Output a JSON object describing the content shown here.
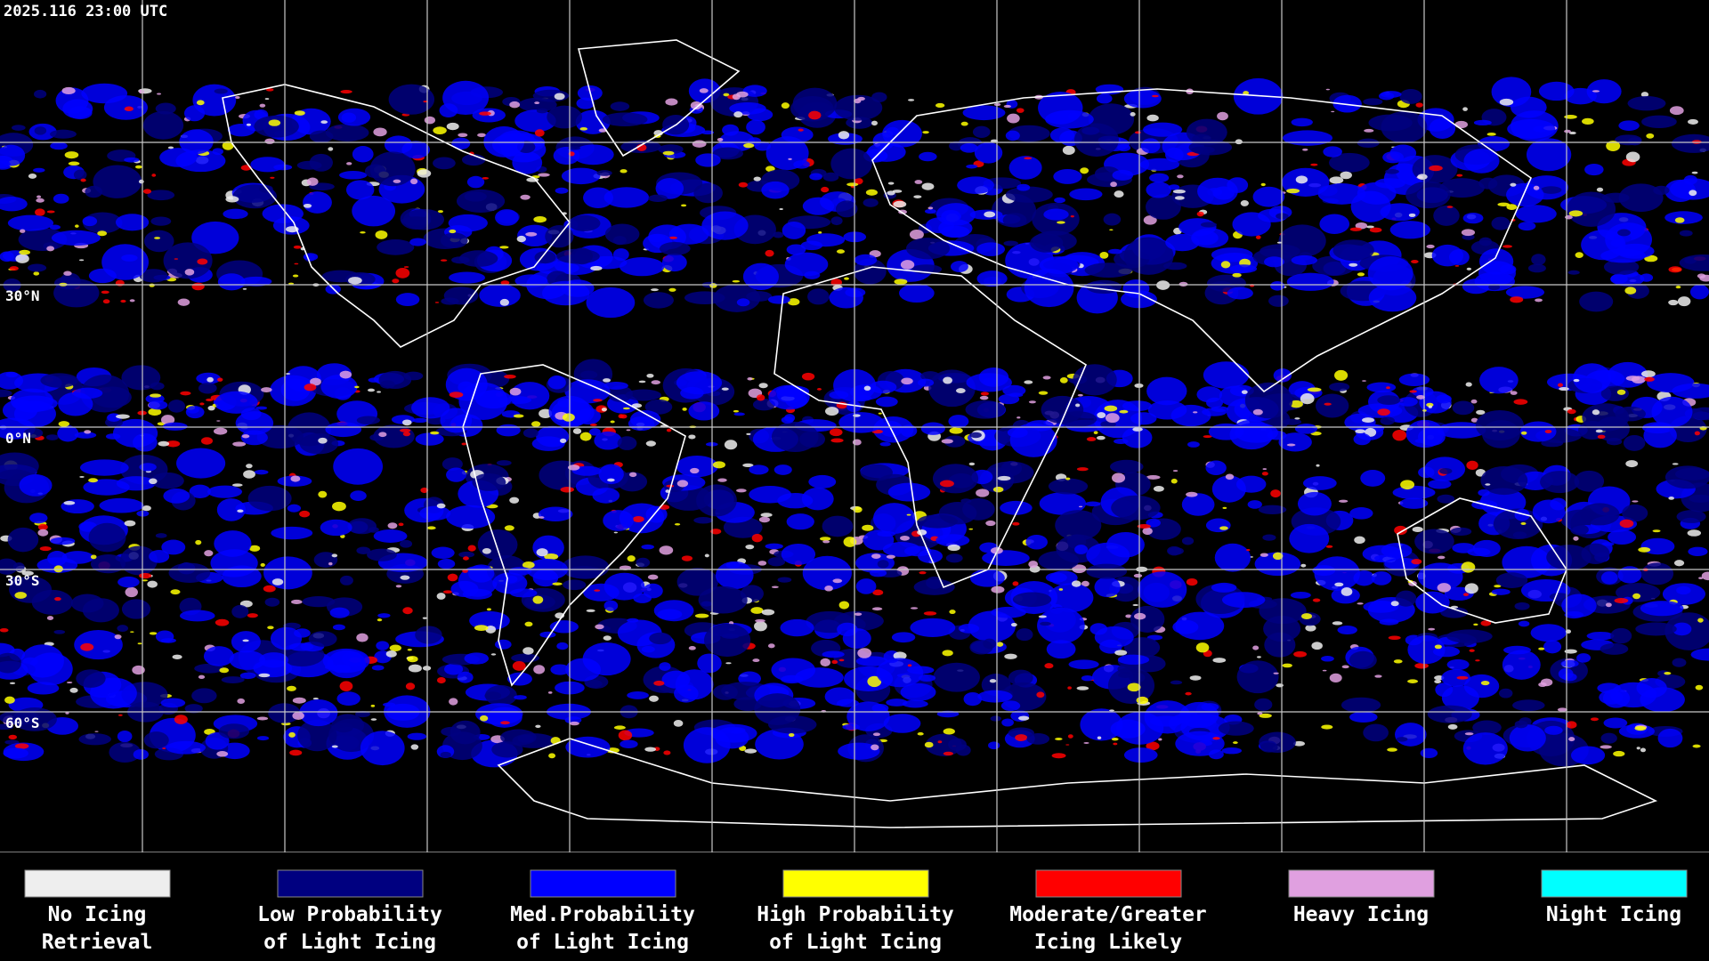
{
  "header": {
    "timestamp": "2025.116 23:00 UTC"
  },
  "latitude_labels": [
    "30°N",
    "0°N",
    "30°S",
    "60°S"
  ],
  "legend": [
    {
      "lines": [
        "No Icing",
        "Retrieval"
      ],
      "color": "#eeeeee"
    },
    {
      "lines": [
        "Low Probability",
        "of Light Icing"
      ],
      "color": "#000080"
    },
    {
      "lines": [
        "Med.Probability",
        "of Light Icing"
      ],
      "color": "#0000ff"
    },
    {
      "lines": [
        "High Probability",
        "of Light Icing"
      ],
      "color": "#ffff00"
    },
    {
      "lines": [
        "Moderate/Greater",
        "Icing Likely"
      ],
      "color": "#ff0000"
    },
    {
      "lines": [
        "Heavy Icing"
      ],
      "color": "#e0a0e0"
    },
    {
      "lines": [
        "Night Icing"
      ],
      "color": "#00ffff"
    }
  ]
}
